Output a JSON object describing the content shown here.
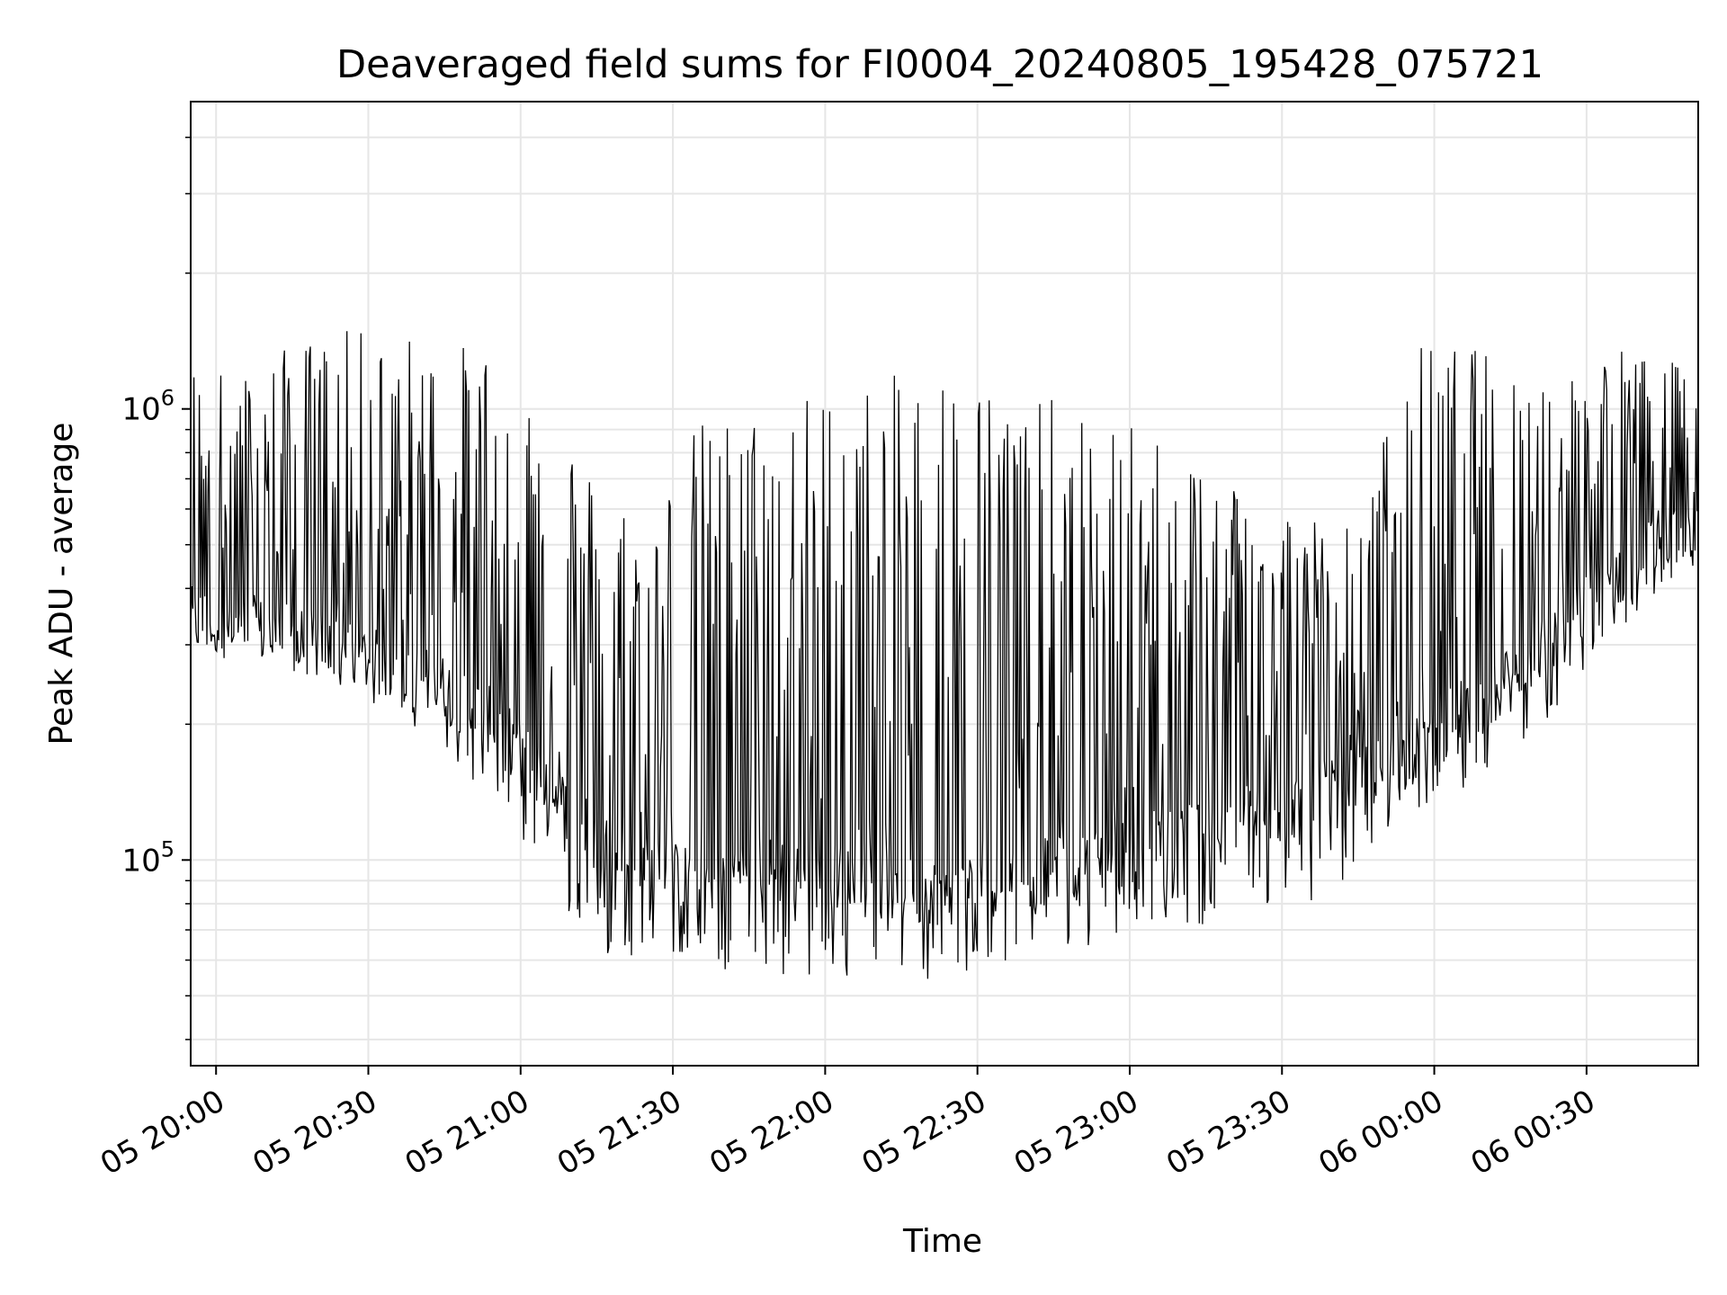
{
  "chart_data": {
    "type": "line",
    "title": "Deaveraged field sums for FI0004_20240805_195428_075721",
    "xlabel": "Time",
    "ylabel": "Peak ADU - average",
    "yscale": "log",
    "ylim": [
      35000,
      4800000
    ],
    "xlim": [
      "2024-08-05 19:55",
      "2024-08-06 00:52"
    ],
    "grid": true,
    "line_color": "#000000",
    "grid_color": "#e6e6e6",
    "x_ticks": [
      {
        "t": "2024-08-05 20:00",
        "label": "05 20:00"
      },
      {
        "t": "2024-08-05 20:30",
        "label": "05 20:30"
      },
      {
        "t": "2024-08-05 21:00",
        "label": "05 21:00"
      },
      {
        "t": "2024-08-05 21:30",
        "label": "05 21:30"
      },
      {
        "t": "2024-08-05 22:00",
        "label": "05 22:00"
      },
      {
        "t": "2024-08-05 22:30",
        "label": "05 22:30"
      },
      {
        "t": "2024-08-05 23:00",
        "label": "05 23:00"
      },
      {
        "t": "2024-08-05 23:30",
        "label": "05 23:30"
      },
      {
        "t": "2024-08-06 00:00",
        "label": "06 00:00"
      },
      {
        "t": "2024-08-06 00:30",
        "label": "06 00:30"
      }
    ],
    "y_major_ticks": [
      {
        "value": 100000,
        "base": "10",
        "exp": "5"
      },
      {
        "value": 1000000,
        "base": "10",
        "exp": "6"
      }
    ],
    "series": [
      {
        "x": [
          "2024-08-05 19:55",
          "2024-08-05 20:05",
          "2024-08-05 20:15",
          "2024-08-05 20:25",
          "2024-08-05 20:35",
          "2024-08-05 20:45",
          "2024-08-05 20:55",
          "2024-08-05 21:05",
          "2024-08-05 21:15",
          "2024-08-05 21:25",
          "2024-08-05 21:35",
          "2024-08-05 21:45",
          "2024-08-05 21:55",
          "2024-08-05 22:05",
          "2024-08-05 22:15",
          "2024-08-05 22:25",
          "2024-08-05 22:35",
          "2024-08-05 22:45",
          "2024-08-05 22:55",
          "2024-08-05 23:05",
          "2024-08-05 23:15",
          "2024-08-05 23:25",
          "2024-08-05 23:35",
          "2024-08-05 23:45",
          "2024-08-05 23:55",
          "2024-08-06 00:05",
          "2024-08-06 00:15",
          "2024-08-06 00:25",
          "2024-08-06 00:35",
          "2024-08-06 00:45",
          "2024-08-06 00:52"
        ],
        "baseline": [
          340000,
          330000,
          310000,
          290000,
          265000,
          240000,
          200000,
          150000,
          110000,
          95000,
          90000,
          95000,
          95000,
          90000,
          85000,
          85000,
          90000,
          95000,
          100000,
          110000,
          120000,
          125000,
          135000,
          150000,
          170000,
          210000,
          260000,
          320000,
          420000,
          520000,
          560000
        ],
        "peaks": [
          1300000,
          1200000,
          1400000,
          1500000,
          1500000,
          1400000,
          1400000,
          1200000,
          700000,
          600000,
          950000,
          1000000,
          1100000,
          1150000,
          1200000,
          1300000,
          1150000,
          1050000,
          950000,
          900000,
          800000,
          700000,
          600000,
          550000,
          1400000,
          1400000,
          1300000,
          1200000,
          1400000,
          1300000,
          1200000
        ],
        "minima": [
          300000,
          290000,
          270000,
          240000,
          210000,
          180000,
          130000,
          90000,
          62000,
          60000,
          57000,
          55000,
          54000,
          55000,
          54000,
          55000,
          58000,
          62000,
          66000,
          68000,
          72000,
          75000,
          80000,
          95000,
          115000,
          140000,
          170000,
          210000,
          300000,
          400000,
          450000
        ]
      }
    ],
    "annotations": []
  }
}
